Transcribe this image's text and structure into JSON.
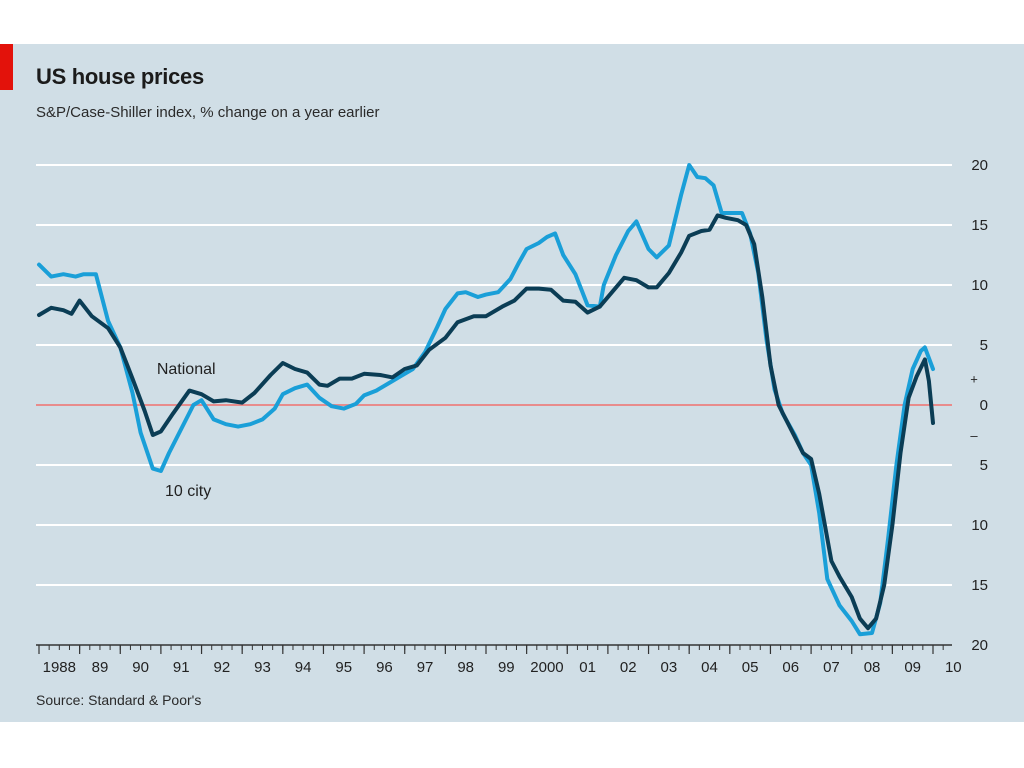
{
  "page": {
    "accent": "#e3120b",
    "title": "US house prices",
    "subtitle": "S&P/Case-Shiller index, % change on a year earlier",
    "source": "Source: Standard & Poor's"
  },
  "chart_data": {
    "type": "line",
    "title": "US house prices",
    "subtitle": "S&P/Case-Shiller index, % change on a year earlier",
    "xlabel": "",
    "ylabel": "",
    "ylim": [
      -20,
      20
    ],
    "xlim": [
      1988,
      2010.9
    ],
    "grid": true,
    "y_ticks": [
      {
        "value": 20,
        "label": "20"
      },
      {
        "value": 15,
        "label": "15"
      },
      {
        "value": 10,
        "label": "10"
      },
      {
        "value": 5,
        "label": "5"
      },
      {
        "value": 0,
        "label": "0"
      },
      {
        "value": -5,
        "label": "5"
      },
      {
        "value": -10,
        "label": "10"
      },
      {
        "value": -15,
        "label": "15"
      },
      {
        "value": -20,
        "label": "20"
      }
    ],
    "sign_labels": {
      "plus": "+",
      "minus": "–"
    },
    "x_ticks": [
      {
        "value": 1988,
        "label": "1988"
      },
      {
        "value": 1989,
        "label": "89"
      },
      {
        "value": 1990,
        "label": "90"
      },
      {
        "value": 1991,
        "label": "91"
      },
      {
        "value": 1992,
        "label": "92"
      },
      {
        "value": 1993,
        "label": "93"
      },
      {
        "value": 1994,
        "label": "94"
      },
      {
        "value": 1995,
        "label": "95"
      },
      {
        "value": 1996,
        "label": "96"
      },
      {
        "value": 1997,
        "label": "97"
      },
      {
        "value": 1998,
        "label": "98"
      },
      {
        "value": 1999,
        "label": "99"
      },
      {
        "value": 2000,
        "label": "2000"
      },
      {
        "value": 2001,
        "label": "01"
      },
      {
        "value": 2002,
        "label": "02"
      },
      {
        "value": 2003,
        "label": "03"
      },
      {
        "value": 2004,
        "label": "04"
      },
      {
        "value": 2005,
        "label": "05"
      },
      {
        "value": 2006,
        "label": "06"
      },
      {
        "value": 2007,
        "label": "07"
      },
      {
        "value": 2008,
        "label": "08"
      },
      {
        "value": 2009,
        "label": "09"
      },
      {
        "value": 2010,
        "label": "10"
      }
    ],
    "series": [
      {
        "name": "National",
        "color": "#0b3d55",
        "annotation": {
          "text": "National",
          "x": 1990.9,
          "y": 2.6
        },
        "points": [
          [
            1988.0,
            7.5
          ],
          [
            1988.3,
            8.1
          ],
          [
            1988.6,
            7.9
          ],
          [
            1988.8,
            7.6
          ],
          [
            1989.0,
            8.7
          ],
          [
            1989.3,
            7.4
          ],
          [
            1989.7,
            6.4
          ],
          [
            1990.0,
            4.8
          ],
          [
            1990.3,
            2.2
          ],
          [
            1990.6,
            -0.5
          ],
          [
            1990.8,
            -2.5
          ],
          [
            1991.0,
            -2.2
          ],
          [
            1991.3,
            -0.7
          ],
          [
            1991.7,
            1.2
          ],
          [
            1992.0,
            0.9
          ],
          [
            1992.3,
            0.3
          ],
          [
            1992.6,
            0.4
          ],
          [
            1993.0,
            0.2
          ],
          [
            1993.3,
            1.0
          ],
          [
            1993.7,
            2.5
          ],
          [
            1994.0,
            3.5
          ],
          [
            1994.3,
            3.0
          ],
          [
            1994.6,
            2.7
          ],
          [
            1994.9,
            1.7
          ],
          [
            1995.1,
            1.6
          ],
          [
            1995.4,
            2.2
          ],
          [
            1995.7,
            2.2
          ],
          [
            1996.0,
            2.6
          ],
          [
            1996.4,
            2.5
          ],
          [
            1996.7,
            2.3
          ],
          [
            1997.0,
            3.0
          ],
          [
            1997.3,
            3.3
          ],
          [
            1997.6,
            4.6
          ],
          [
            1998.0,
            5.6
          ],
          [
            1998.3,
            6.9
          ],
          [
            1998.7,
            7.4
          ],
          [
            1999.0,
            7.4
          ],
          [
            1999.4,
            8.2
          ],
          [
            1999.7,
            8.7
          ],
          [
            2000.0,
            9.7
          ],
          [
            2000.3,
            9.7
          ],
          [
            2000.6,
            9.6
          ],
          [
            2000.9,
            8.7
          ],
          [
            2001.2,
            8.6
          ],
          [
            2001.5,
            7.7
          ],
          [
            2001.8,
            8.2
          ],
          [
            2002.1,
            9.4
          ],
          [
            2002.4,
            10.6
          ],
          [
            2002.7,
            10.4
          ],
          [
            2003.0,
            9.8
          ],
          [
            2003.2,
            9.8
          ],
          [
            2003.5,
            11.0
          ],
          [
            2003.8,
            12.7
          ],
          [
            2004.0,
            14.1
          ],
          [
            2004.3,
            14.5
          ],
          [
            2004.5,
            14.6
          ],
          [
            2004.7,
            15.8
          ],
          [
            2004.9,
            15.6
          ],
          [
            2005.2,
            15.4
          ],
          [
            2005.4,
            15.0
          ],
          [
            2005.6,
            13.4
          ],
          [
            2005.8,
            9.0
          ],
          [
            2006.0,
            3.3
          ],
          [
            2006.2,
            0.0
          ],
          [
            2006.5,
            -2.0
          ],
          [
            2006.8,
            -4.0
          ],
          [
            2007.0,
            -4.5
          ],
          [
            2007.2,
            -7.4
          ],
          [
            2007.5,
            -13.0
          ],
          [
            2007.7,
            -14.3
          ],
          [
            2008.0,
            -16.0
          ],
          [
            2008.2,
            -17.8
          ],
          [
            2008.4,
            -18.6
          ],
          [
            2008.6,
            -17.8
          ],
          [
            2008.8,
            -15.0
          ],
          [
            2009.0,
            -10.0
          ],
          [
            2009.2,
            -4.0
          ],
          [
            2009.4,
            0.6
          ],
          [
            2009.6,
            2.4
          ],
          [
            2009.8,
            3.8
          ],
          [
            2009.9,
            2.0
          ],
          [
            2010.0,
            -1.5
          ]
        ]
      },
      {
        "name": "10 city",
        "color": "#1a9fd8",
        "annotation": {
          "text": "10 city",
          "x": 1991.1,
          "y": -7.6
        },
        "points": [
          [
            1988.0,
            11.7
          ],
          [
            1988.3,
            10.7
          ],
          [
            1988.6,
            10.9
          ],
          [
            1988.9,
            10.7
          ],
          [
            1989.1,
            10.9
          ],
          [
            1989.4,
            10.9
          ],
          [
            1989.7,
            7.0
          ],
          [
            1990.0,
            4.8
          ],
          [
            1990.3,
            1.0
          ],
          [
            1990.5,
            -2.3
          ],
          [
            1990.8,
            -5.3
          ],
          [
            1991.0,
            -5.5
          ],
          [
            1991.2,
            -4.0
          ],
          [
            1991.5,
            -2.0
          ],
          [
            1991.8,
            0.0
          ],
          [
            1992.0,
            0.4
          ],
          [
            1992.3,
            -1.2
          ],
          [
            1992.6,
            -1.6
          ],
          [
            1992.9,
            -1.8
          ],
          [
            1993.2,
            -1.6
          ],
          [
            1993.5,
            -1.2
          ],
          [
            1993.8,
            -0.3
          ],
          [
            1994.0,
            0.9
          ],
          [
            1994.3,
            1.4
          ],
          [
            1994.6,
            1.7
          ],
          [
            1994.9,
            0.6
          ],
          [
            1995.2,
            -0.1
          ],
          [
            1995.5,
            -0.3
          ],
          [
            1995.8,
            0.1
          ],
          [
            1996.0,
            0.8
          ],
          [
            1996.3,
            1.2
          ],
          [
            1996.6,
            1.8
          ],
          [
            1996.9,
            2.4
          ],
          [
            1997.2,
            3.0
          ],
          [
            1997.5,
            4.4
          ],
          [
            1997.8,
            6.5
          ],
          [
            1998.0,
            8.0
          ],
          [
            1998.3,
            9.3
          ],
          [
            1998.5,
            9.4
          ],
          [
            1998.8,
            9.0
          ],
          [
            1999.0,
            9.2
          ],
          [
            1999.3,
            9.4
          ],
          [
            1999.6,
            10.5
          ],
          [
            1999.8,
            11.8
          ],
          [
            2000.0,
            13.0
          ],
          [
            2000.3,
            13.5
          ],
          [
            2000.5,
            14.0
          ],
          [
            2000.7,
            14.3
          ],
          [
            2000.9,
            12.5
          ],
          [
            2001.2,
            10.9
          ],
          [
            2001.5,
            8.3
          ],
          [
            2001.8,
            8.2
          ],
          [
            2001.9,
            10.0
          ],
          [
            2002.2,
            12.5
          ],
          [
            2002.5,
            14.5
          ],
          [
            2002.7,
            15.3
          ],
          [
            2003.0,
            13.0
          ],
          [
            2003.2,
            12.3
          ],
          [
            2003.5,
            13.3
          ],
          [
            2003.8,
            17.5
          ],
          [
            2004.0,
            20.0
          ],
          [
            2004.2,
            19.0
          ],
          [
            2004.4,
            18.9
          ],
          [
            2004.6,
            18.3
          ],
          [
            2004.8,
            16.0
          ],
          [
            2005.1,
            16.0
          ],
          [
            2005.3,
            16.0
          ],
          [
            2005.5,
            14.3
          ],
          [
            2005.7,
            11.0
          ],
          [
            2005.9,
            5.5
          ],
          [
            2006.1,
            1.3
          ],
          [
            2006.3,
            -0.7
          ],
          [
            2006.6,
            -2.5
          ],
          [
            2006.8,
            -4.0
          ],
          [
            2007.0,
            -5.0
          ],
          [
            2007.2,
            -9.0
          ],
          [
            2007.4,
            -14.5
          ],
          [
            2007.7,
            -16.7
          ],
          [
            2008.0,
            -18.0
          ],
          [
            2008.2,
            -19.1
          ],
          [
            2008.5,
            -19.0
          ],
          [
            2008.7,
            -16.5
          ],
          [
            2008.9,
            -11.0
          ],
          [
            2009.1,
            -5.0
          ],
          [
            2009.3,
            0.0
          ],
          [
            2009.5,
            3.0
          ],
          [
            2009.7,
            4.5
          ],
          [
            2009.8,
            4.8
          ],
          [
            2010.0,
            3.0
          ]
        ]
      }
    ]
  }
}
